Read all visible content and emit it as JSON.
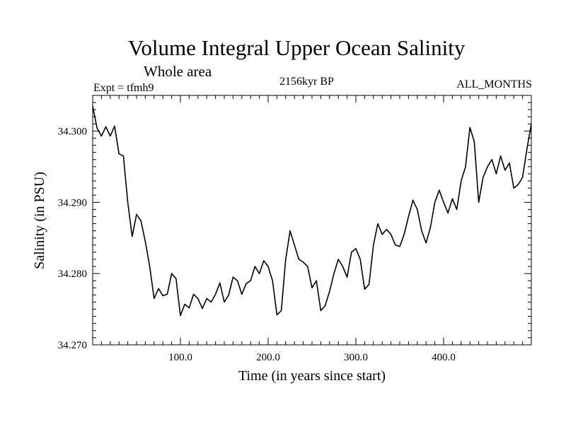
{
  "header": {
    "title": "Volume Integral Upper Ocean Salinity",
    "subtitle": "Whole area",
    "experiment": "Expt = tfmh9",
    "period": "2156kyr BP",
    "months": "ALL_MONTHS"
  },
  "chart_data": {
    "type": "line",
    "title": "Volume Integral Upper Ocean Salinity",
    "subtitle": "Whole area",
    "xlabel": "Time (in years since start)",
    "ylabel": "Salinity (in PSU)",
    "xlim": [
      0,
      500
    ],
    "ylim": [
      34.27,
      34.305
    ],
    "xticks": [
      100,
      200,
      300,
      400
    ],
    "xtick_labels": [
      "100.0",
      "200.0",
      "300.0",
      "400.0"
    ],
    "yticks": [
      34.27,
      34.28,
      34.29,
      34.3
    ],
    "ytick_labels": [
      "34.270",
      "34.280",
      "34.290",
      "34.300"
    ],
    "grid": false,
    "series": [
      {
        "name": "Salinity",
        "x": [
          0,
          5,
          10,
          15,
          20,
          25,
          30,
          35,
          40,
          45,
          50,
          55,
          60,
          65,
          70,
          75,
          80,
          85,
          90,
          95,
          100,
          105,
          110,
          115,
          120,
          125,
          130,
          135,
          140,
          145,
          150,
          155,
          160,
          165,
          170,
          175,
          180,
          185,
          190,
          195,
          200,
          205,
          210,
          215,
          220,
          225,
          230,
          235,
          240,
          245,
          250,
          255,
          260,
          265,
          270,
          275,
          280,
          285,
          290,
          295,
          300,
          305,
          310,
          315,
          320,
          325,
          330,
          335,
          340,
          345,
          350,
          355,
          360,
          365,
          370,
          375,
          380,
          385,
          390,
          395,
          400,
          405,
          410,
          415,
          420,
          425,
          430,
          435,
          440,
          445,
          450,
          455,
          460,
          465,
          470,
          475,
          480,
          485,
          490,
          495,
          500
        ],
        "values": [
          34.3035,
          34.3004,
          34.2993,
          34.3006,
          34.2993,
          34.3007,
          34.2968,
          34.2965,
          34.29,
          34.2852,
          34.2883,
          34.2874,
          34.2845,
          34.281,
          34.2765,
          34.2779,
          34.2769,
          34.2771,
          34.28,
          34.2793,
          34.2741,
          34.2757,
          34.2752,
          34.2771,
          34.2765,
          34.2751,
          34.2765,
          34.276,
          34.2771,
          34.2787,
          34.276,
          34.277,
          34.2795,
          34.279,
          34.2771,
          34.2786,
          34.279,
          34.281,
          34.28,
          34.2818,
          34.281,
          34.279,
          34.2742,
          34.2748,
          34.282,
          34.286,
          34.284,
          34.282,
          34.2816,
          34.281,
          34.278,
          34.279,
          34.2748,
          34.2755,
          34.2775,
          34.28,
          34.282,
          34.281,
          34.2795,
          34.283,
          34.2835,
          34.282,
          34.2778,
          34.2785,
          34.284,
          34.287,
          34.2855,
          34.2862,
          34.2855,
          34.284,
          34.2838,
          34.2855,
          34.288,
          34.2903,
          34.289,
          34.286,
          34.2843,
          34.2865,
          34.29,
          34.2917,
          34.29,
          34.2885,
          34.2905,
          34.289,
          34.293,
          34.295,
          34.3005,
          34.2985,
          34.29,
          34.2935,
          34.295,
          34.296,
          34.294,
          34.2965,
          34.2945,
          34.2955,
          34.292,
          34.2925,
          34.2935,
          34.2975,
          34.301
        ]
      }
    ]
  }
}
